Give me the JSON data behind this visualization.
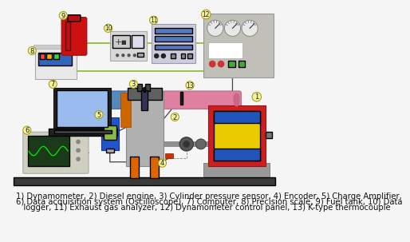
{
  "bg_color": "#f5f5f5",
  "caption_line1": "1) Dynamometer, 2) Diesel engine, 3) Cylinder pressure sensor, 4) Encoder, 5) Charge Amplifier,",
  "caption_line2": "6) Data acquisition system (Oscilloscope), 7) Computer, 8) Precision scale, 9) Fuel tank, 10) Data",
  "caption_line3": "   logger, 11) Exhaust gas analyzer, 12) Dynamometer control panel, 13) K-type thermocouple",
  "label_circle_fill": "#f5f0a0",
  "label_circle_edge": "#999900",
  "label_fontsize": 6.5,
  "caption_fontsize": 7.2,
  "colors": {
    "floor": "#3a3a3a",
    "dyn_red": "#cc2020",
    "dyn_yellow": "#e8cc00",
    "dyn_blue": "#2255bb",
    "dyn_base_gray": "#808080",
    "engine_gray": "#b0b0b0",
    "engine_dark": "#606060",
    "engine_orange": "#dd6600",
    "intake_blue": "#5588bb",
    "exhaust_pink": "#e080a0",
    "shaft_gray": "#909090",
    "wire_green": "#88bb22",
    "wire_dark": "#444444",
    "scope_body": "#d0d0c0",
    "scope_screen": "#1a3a1a",
    "scope_trace": "#00ee00",
    "laptop_body": "#222222",
    "laptop_screen": "#99bbee",
    "fuel_red": "#cc1111",
    "scale_body": "#e8e8e8",
    "scale_blue": "#3366bb",
    "chargeamp_blue": "#2255cc",
    "chargeamp_screen": "#88bb44",
    "panel_gray": "#c0c0b8",
    "panel_screen": "#f0f0f0",
    "red_btn": "#cc3333",
    "green_btn": "#44aa33",
    "logger_gray": "#d8d8d8",
    "logger_screen": "#ccccff",
    "ega_gray": "#ccccdd",
    "ega_blue": "#5577bb",
    "thermocouple": "#222222"
  }
}
